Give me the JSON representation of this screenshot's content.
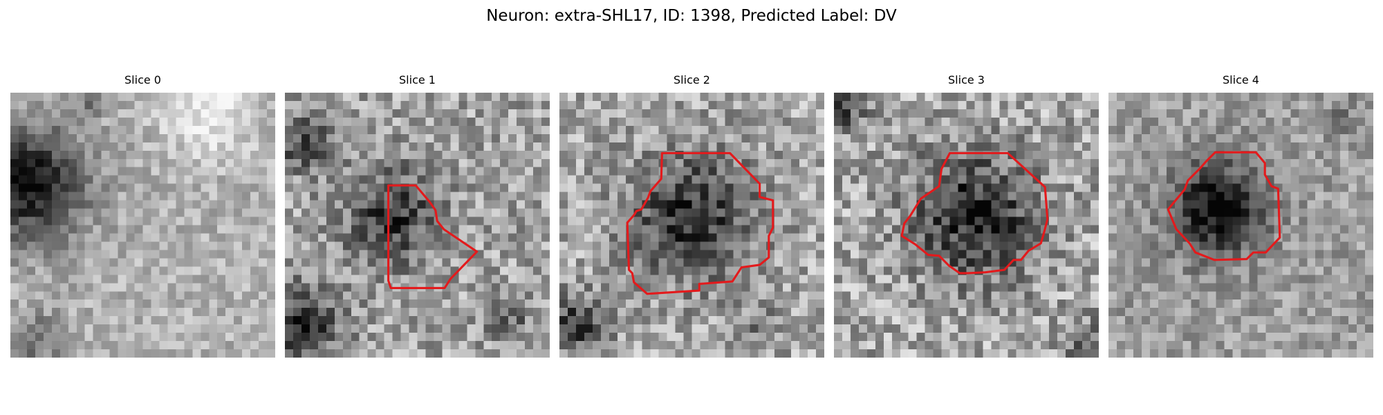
{
  "figure": {
    "title": "Neuron: extra-SHL17, ID: 1398, Predicted Label: DV"
  },
  "contour_color": "#e31a1c",
  "image_colormap": "grayscale",
  "panels": [
    {
      "title": "Slice 0",
      "has_contour": false
    },
    {
      "title": "Slice 1",
      "has_contour": true
    },
    {
      "title": "Slice 2",
      "has_contour": true
    },
    {
      "title": "Slice 3",
      "has_contour": true
    },
    {
      "title": "Slice 4",
      "has_contour": true
    }
  ]
}
